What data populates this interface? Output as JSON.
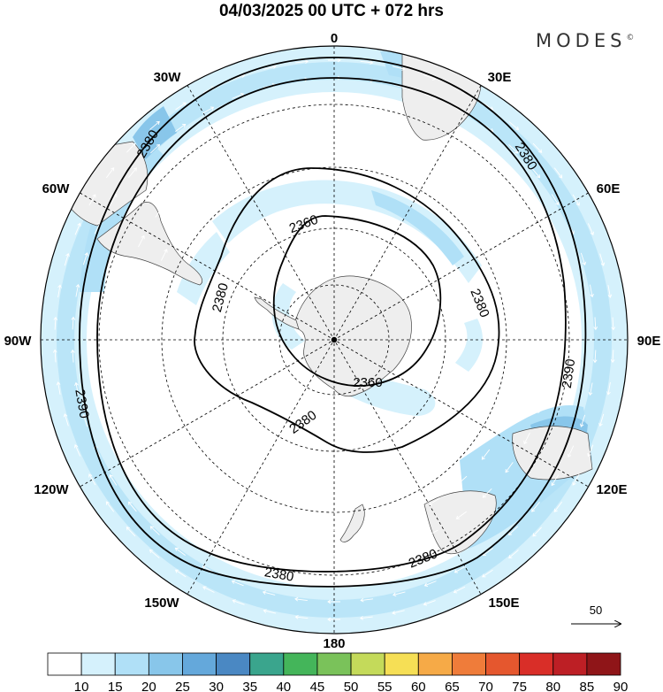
{
  "header": {
    "title": "04/03/2025  00 UTC  + 072 hrs",
    "brand": "MODES",
    "brand_mark": "©"
  },
  "map": {
    "projection": "south polar stereographic",
    "longitude_labels": {
      "top": "0",
      "top_right": "30E",
      "right_upper": "60E",
      "right": "90E",
      "right_lower": "120E",
      "bottom_right": "150E",
      "bottom": "180",
      "bottom_left": "150W",
      "left_lower": "120W",
      "left": "90W",
      "left_upper": "60W",
      "top_left": "30W"
    },
    "contour_labels": [
      "2380",
      "2380",
      "2390",
      "2390",
      "2380",
      "2380",
      "2380",
      "2360",
      "2360",
      "2380",
      "2380"
    ],
    "wind_reference": {
      "label": "50"
    }
  },
  "colorbar": {
    "levels": [
      "10",
      "15",
      "20",
      "25",
      "30",
      "35",
      "40",
      "45",
      "50",
      "55",
      "60",
      "65",
      "70",
      "75",
      "80",
      "85",
      "90"
    ],
    "colors": [
      "#ffffff",
      "#d5f1fc",
      "#b0e0f7",
      "#88c6ea",
      "#64a8db",
      "#4a88c3",
      "#3aa58d",
      "#44b55a",
      "#7ac25a",
      "#c4da5a",
      "#f6df55",
      "#f6aa47",
      "#ef7c3a",
      "#e5572e",
      "#d92e28",
      "#bd1f25",
      "#8f1518"
    ]
  }
}
